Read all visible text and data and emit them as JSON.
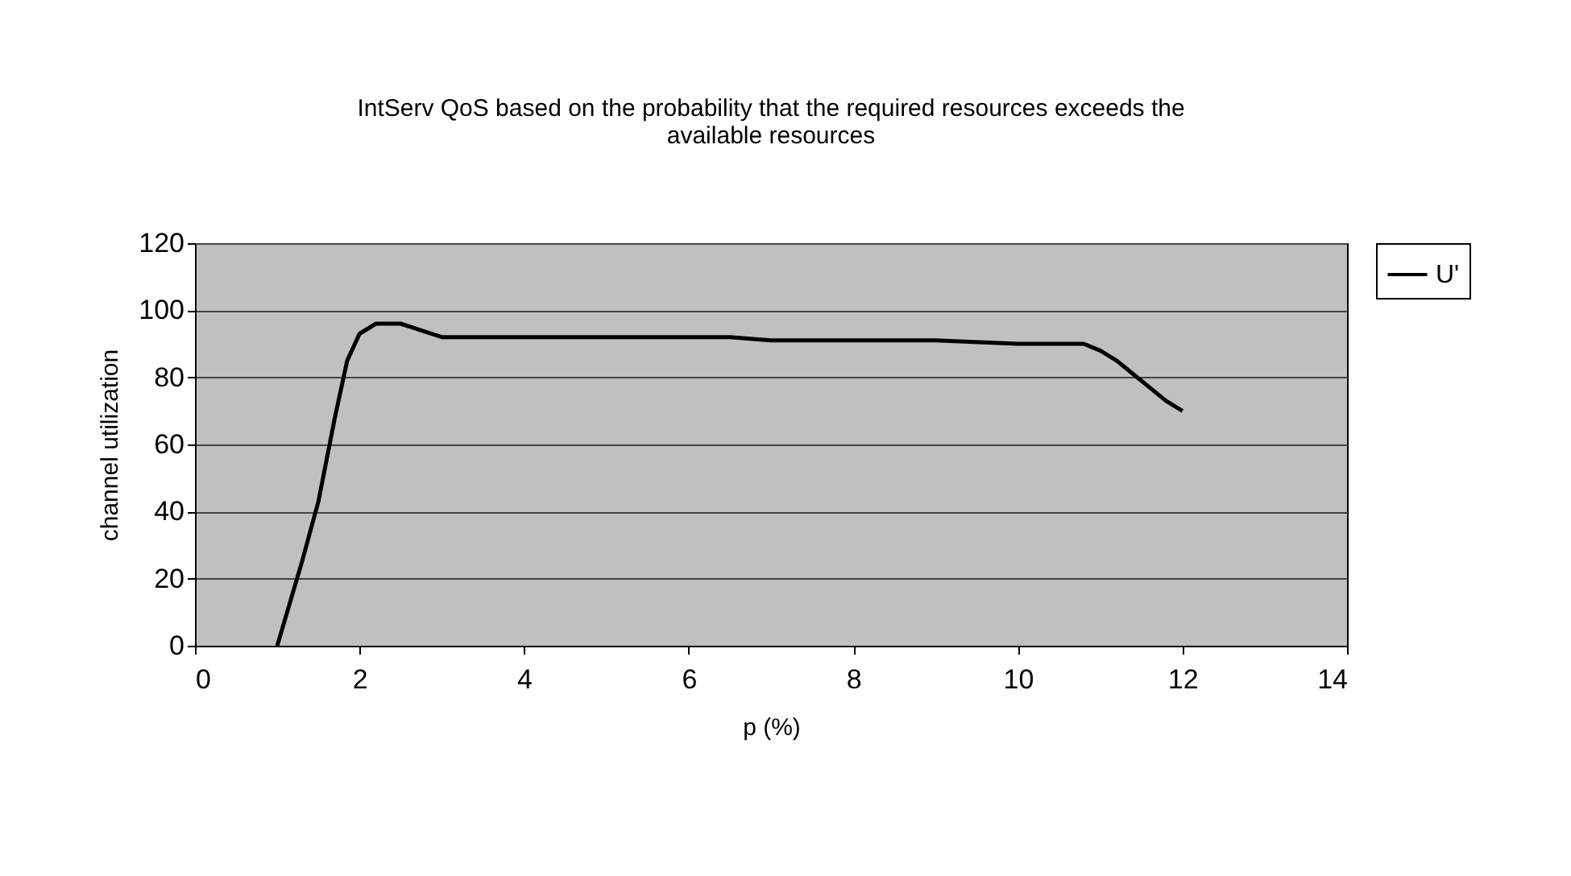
{
  "chart_data": {
    "type": "line",
    "title": [
      "IntServ QoS based on the probability that the required resources exceeds the",
      "available resources"
    ],
    "xlabel": "p (%)",
    "ylabel": "channel utilization",
    "x": [
      1,
      1.3,
      1.5,
      1.7,
      1.85,
      2.0,
      2.2,
      2.5,
      2.75,
      3.0,
      4,
      5,
      6,
      6.5,
      7,
      8,
      9,
      10,
      10.8,
      11.0,
      11.2,
      11.4,
      11.6,
      11.8,
      12
    ],
    "series": [
      {
        "name": "U'",
        "color": "#000000",
        "values": [
          0,
          25,
          43,
          68,
          85,
          93,
          96,
          96,
          94,
          92,
          92,
          92,
          92,
          92,
          91,
          91,
          91,
          90,
          90,
          88,
          85,
          81,
          77,
          73,
          70
        ]
      }
    ],
    "xlim": [
      0,
      14
    ],
    "xticks": [
      0,
      2,
      4,
      6,
      8,
      10,
      12,
      14
    ],
    "ylim": [
      0,
      120
    ],
    "yticks": [
      0,
      20,
      40,
      60,
      80,
      100,
      120
    ],
    "grid": "y",
    "legend": "right",
    "marker": "none",
    "line_style": "solid"
  }
}
